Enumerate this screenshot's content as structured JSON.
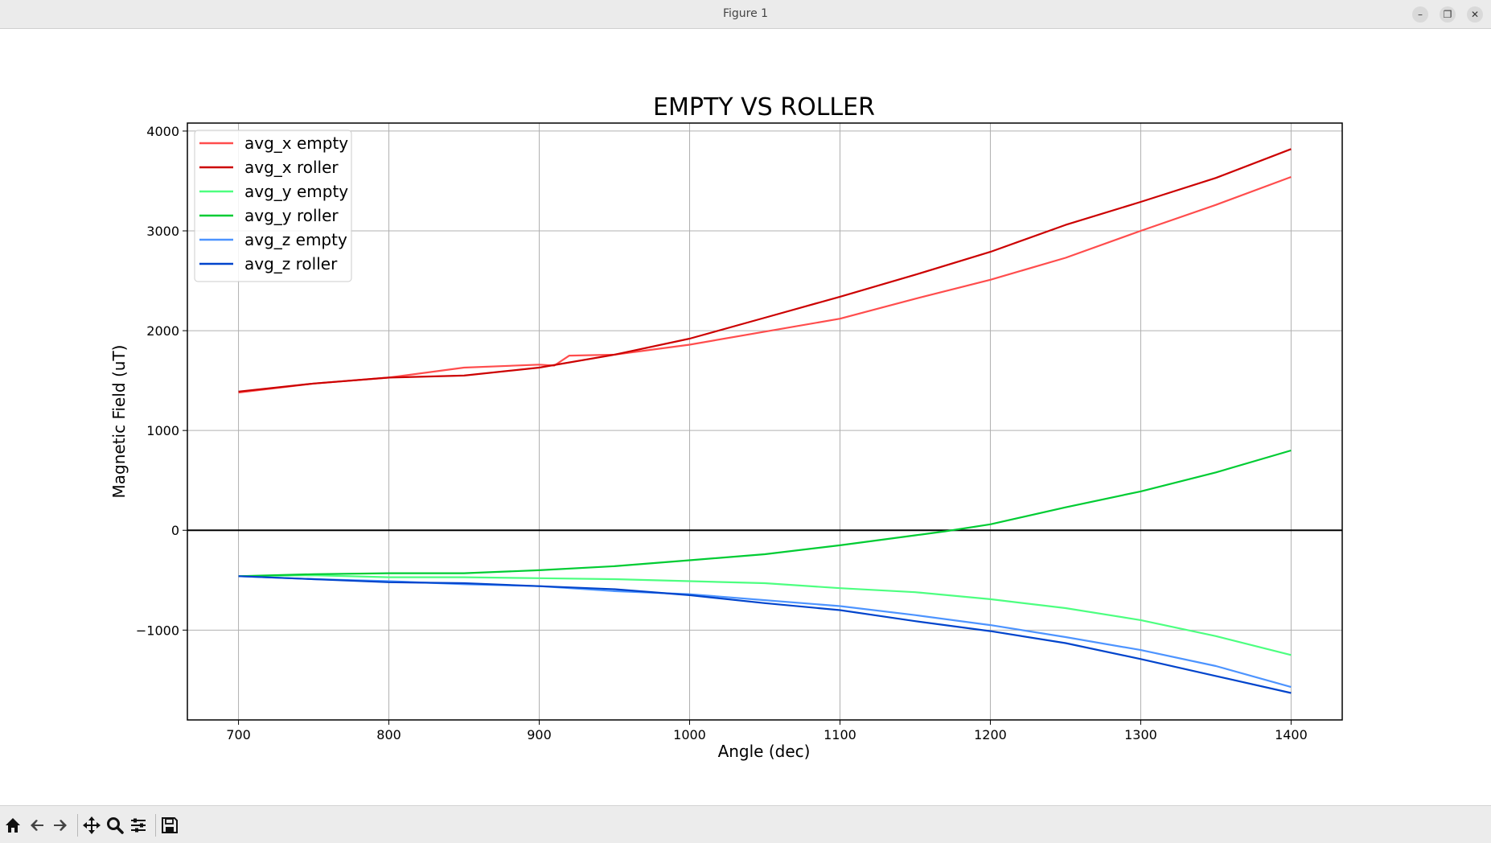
{
  "window": {
    "title": "Figure 1",
    "controls": {
      "minimize": "–",
      "restore": "❐",
      "close": "✕"
    }
  },
  "toolbar": {
    "buttons": [
      "home-icon",
      "back-arrow-icon",
      "forward-arrow-icon",
      "pan-icon",
      "zoom-icon",
      "configure-subplots-icon",
      "save-icon"
    ]
  },
  "chart_data": {
    "type": "line",
    "title": "EMPTY VS ROLLER",
    "xlabel": "Angle (dec)",
    "ylabel": "Magnetic Field (uT)",
    "xlim": [
      666,
      1434
    ],
    "ylim": [
      -1900,
      4080
    ],
    "xticks": [
      700,
      800,
      900,
      1000,
      1100,
      1200,
      1300,
      1400
    ],
    "yticks": [
      -1000,
      0,
      1000,
      2000,
      3000,
      4000
    ],
    "ytick_labels": [
      "−1000",
      "0",
      "1000",
      "2000",
      "3000",
      "4000"
    ],
    "grid": true,
    "zero_line": true,
    "legend_position": "top-left",
    "series": [
      {
        "name": "avg_x empty",
        "color": "#ff4d4d",
        "x": [
          700,
          750,
          800,
          850,
          900,
          910,
          920,
          950,
          1000,
          1050,
          1100,
          1150,
          1200,
          1250,
          1300,
          1350,
          1400
        ],
        "y": [
          1380,
          1470,
          1530,
          1630,
          1660,
          1650,
          1750,
          1760,
          1860,
          1990,
          2120,
          2320,
          2510,
          2730,
          3000,
          3260,
          3540
        ]
      },
      {
        "name": "avg_x roller",
        "color": "#cc0000",
        "x": [
          700,
          750,
          800,
          850,
          900,
          950,
          1000,
          1050,
          1100,
          1150,
          1200,
          1250,
          1300,
          1350,
          1400
        ],
        "y": [
          1390,
          1470,
          1530,
          1550,
          1630,
          1760,
          1920,
          2130,
          2340,
          2560,
          2790,
          3060,
          3290,
          3530,
          3820
        ]
      },
      {
        "name": "avg_y empty",
        "color": "#4dff80",
        "x": [
          700,
          750,
          800,
          850,
          900,
          950,
          1000,
          1050,
          1100,
          1150,
          1200,
          1250,
          1300,
          1350,
          1400
        ],
        "y": [
          -460,
          -450,
          -470,
          -470,
          -480,
          -490,
          -510,
          -530,
          -580,
          -620,
          -690,
          -780,
          -900,
          -1060,
          -1250
        ]
      },
      {
        "name": "avg_y roller",
        "color": "#00cc33",
        "x": [
          700,
          750,
          800,
          850,
          900,
          950,
          1000,
          1050,
          1100,
          1150,
          1170,
          1200,
          1250,
          1300,
          1350,
          1400
        ],
        "y": [
          -460,
          -440,
          -430,
          -430,
          -400,
          -360,
          -300,
          -240,
          -150,
          -50,
          -10,
          60,
          230,
          390,
          580,
          800
        ]
      },
      {
        "name": "avg_z empty",
        "color": "#4d94ff",
        "x": [
          700,
          750,
          800,
          850,
          900,
          950,
          1000,
          1050,
          1100,
          1150,
          1200,
          1250,
          1300,
          1350,
          1400
        ],
        "y": [
          -460,
          -490,
          -510,
          -540,
          -560,
          -610,
          -640,
          -700,
          -760,
          -850,
          -950,
          -1070,
          -1200,
          -1360,
          -1570
        ]
      },
      {
        "name": "avg_z roller",
        "color": "#0044cc",
        "x": [
          700,
          750,
          800,
          850,
          900,
          950,
          1000,
          1050,
          1100,
          1150,
          1200,
          1250,
          1300,
          1350,
          1400
        ],
        "y": [
          -460,
          -490,
          -520,
          -530,
          -560,
          -590,
          -650,
          -730,
          -800,
          -910,
          -1010,
          -1130,
          -1290,
          -1460,
          -1630
        ]
      }
    ]
  }
}
